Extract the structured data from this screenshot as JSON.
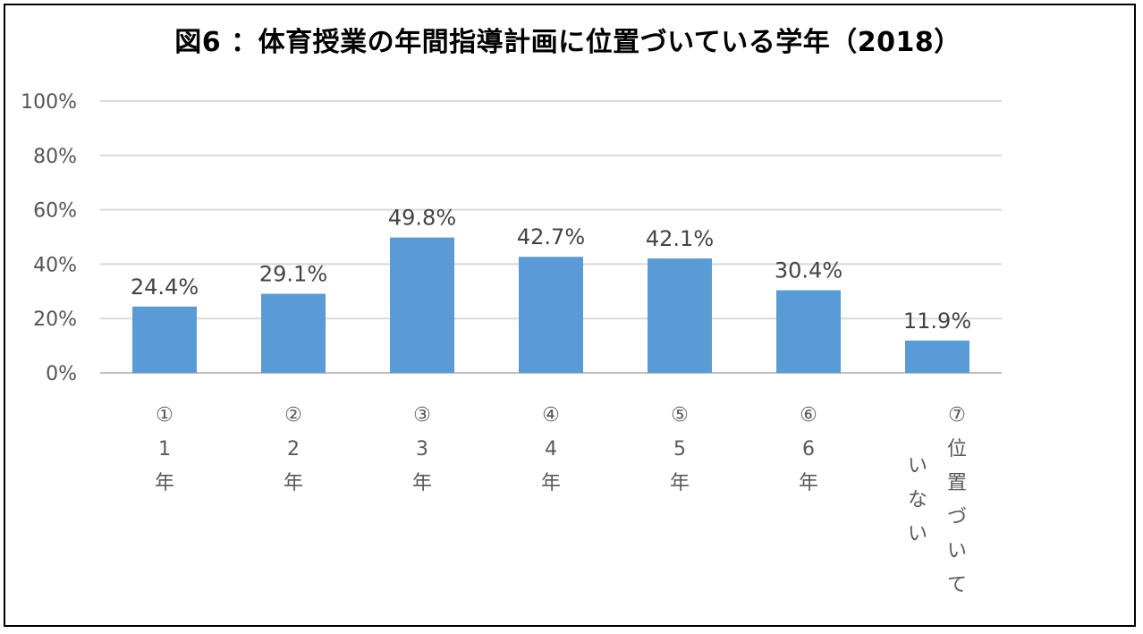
{
  "chart_data": {
    "type": "bar",
    "title": "図6 ：体育授業の年間指導計画に位置づいている学年（2018）",
    "xlabel": "",
    "ylabel": "",
    "ylim": [
      0,
      100
    ],
    "ytick_labels": [
      "0%",
      "20%",
      "40%",
      "60%",
      "80%",
      "100%"
    ],
    "yticks": [
      0,
      20,
      40,
      60,
      80,
      100
    ],
    "grid": true,
    "legend": "none",
    "bar_color": "#5B9BD5",
    "categories": [
      "①1年",
      "②2年",
      "③3年",
      "④4年",
      "⑤5年",
      "⑥6年",
      "⑦位置づいていない"
    ],
    "category_lines": [
      [
        [
          "①",
          "1",
          "年"
        ]
      ],
      [
        [
          "②",
          "2",
          "年"
        ]
      ],
      [
        [
          "③",
          "3",
          "年"
        ]
      ],
      [
        [
          "④",
          "4",
          "年"
        ]
      ],
      [
        [
          "⑤",
          "5",
          "年"
        ]
      ],
      [
        [
          "⑥",
          "6",
          "年"
        ]
      ],
      [
        [
          "⑦",
          "位",
          "置",
          "づ",
          "い",
          "て"
        ],
        [
          "い",
          "な",
          "い"
        ]
      ]
    ],
    "values": [
      24.4,
      29.1,
      49.8,
      42.7,
      42.1,
      30.4,
      11.9
    ],
    "value_labels": [
      "24.4%",
      "29.1%",
      "49.8%",
      "42.7%",
      "42.1%",
      "30.4%",
      "11.9%"
    ]
  }
}
